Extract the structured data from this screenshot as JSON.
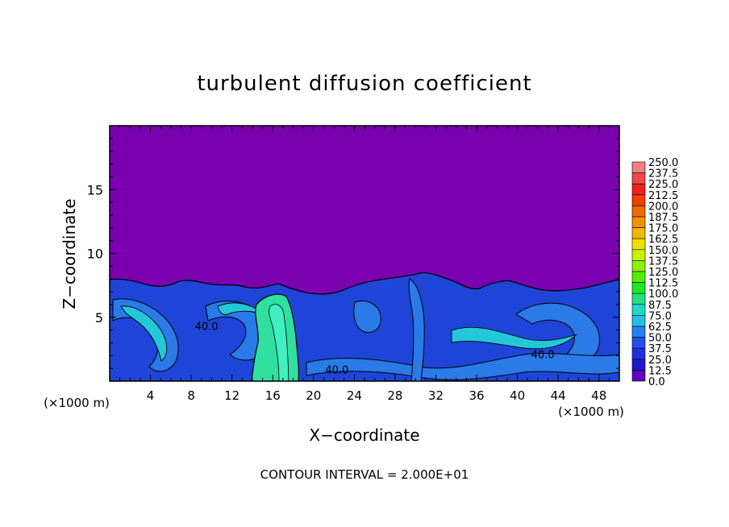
{
  "chart_data": {
    "type": "heatmap",
    "title": "turbulent diffusion coefficient",
    "xlabel": "X−coordinate",
    "ylabel": "Z−coordinate",
    "x_unit_left": "(×1000 m)",
    "x_unit_right": "(×1000 m)",
    "footer": "CONTOUR INTERVAL = 2.000E+01",
    "xlim": [
      0,
      50
    ],
    "ylim": [
      0,
      20
    ],
    "x_ticks": [
      4,
      8,
      12,
      16,
      20,
      24,
      28,
      32,
      36,
      40,
      44,
      48
    ],
    "y_ticks": [
      5,
      10,
      15
    ],
    "contour_labels": [
      {
        "text": "40.0",
        "x": 9.5,
        "z": 4.0
      },
      {
        "text": "40.0",
        "x": 22.3,
        "z": 0.6
      },
      {
        "text": "40.0",
        "x": 42.5,
        "z": 1.8
      }
    ],
    "colorbar": {
      "levels": [
        "250.0",
        "237.5",
        "225.0",
        "212.5",
        "200.0",
        "187.5",
        "175.0",
        "162.5",
        "150.0",
        "137.5",
        "125.0",
        "112.5",
        "100.0",
        "87.5",
        "75.0",
        "62.5",
        "50.0",
        "37.5",
        "25.0",
        "12.5",
        "0.0"
      ],
      "colors": [
        "#f08080",
        "#f04848",
        "#f02020",
        "#f04000",
        "#f06800",
        "#f09000",
        "#f0b800",
        "#f0e000",
        "#c8f000",
        "#90f000",
        "#50f000",
        "#20e820",
        "#20e080",
        "#20d8c8",
        "#20c0e8",
        "#2080f0",
        "#2050f0",
        "#2030e0",
        "#2018d0",
        "#6000c0"
      ]
    },
    "background_color": "#7a00b0",
    "layer_colors": {
      "base": "#1f45d8",
      "mid": "#2a7ae8",
      "high": "#22c8d8",
      "peak": "#30e0a0"
    }
  }
}
